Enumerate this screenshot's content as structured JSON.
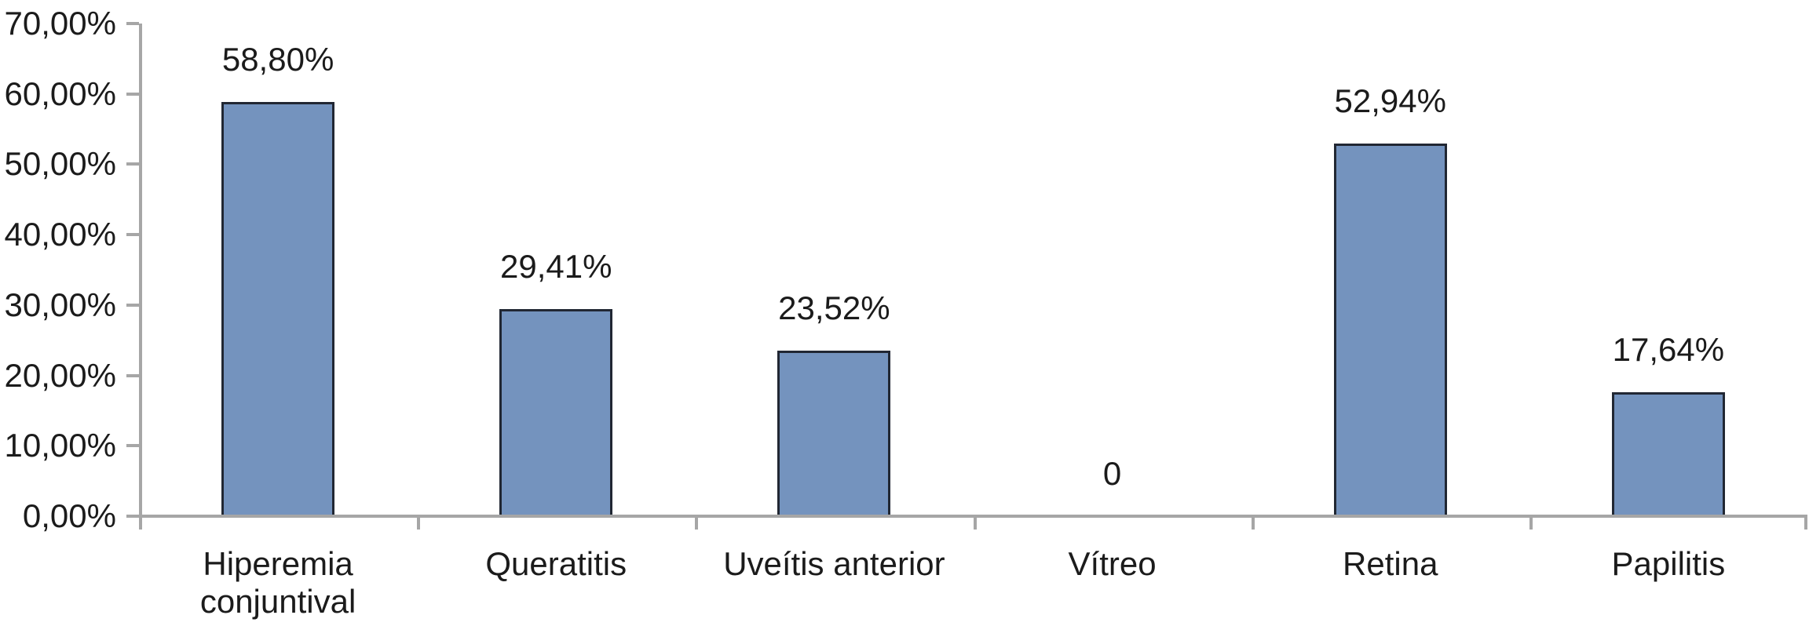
{
  "chart_data": {
    "type": "bar",
    "title": "",
    "xlabel": "",
    "ylabel": "",
    "categories": [
      "Hiperemia conjuntival",
      "Queratitis",
      "Uveítis anterior",
      "Vítreo",
      "Retina",
      "Papilitis"
    ],
    "values": [
      58.8,
      29.41,
      23.52,
      0,
      52.94,
      17.64
    ],
    "value_labels": [
      "58,80%",
      "29,41%",
      "23,52%",
      "0",
      "52,94%",
      "17,64%"
    ],
    "ylim": [
      0,
      70
    ],
    "ytick_step": 10,
    "ytick_labels": [
      "0,00%",
      "10,00%",
      "20,00%",
      "30,00%",
      "40,00%",
      "50,00%",
      "60,00%",
      "70,00%"
    ],
    "grid": false,
    "legend_position": "none",
    "colors": {
      "bar_fill": "#7493BE",
      "bar_border": "#212733",
      "axis": "#A6A6A6",
      "text": "#1B1B1B",
      "background": "#FFFFFF"
    }
  }
}
